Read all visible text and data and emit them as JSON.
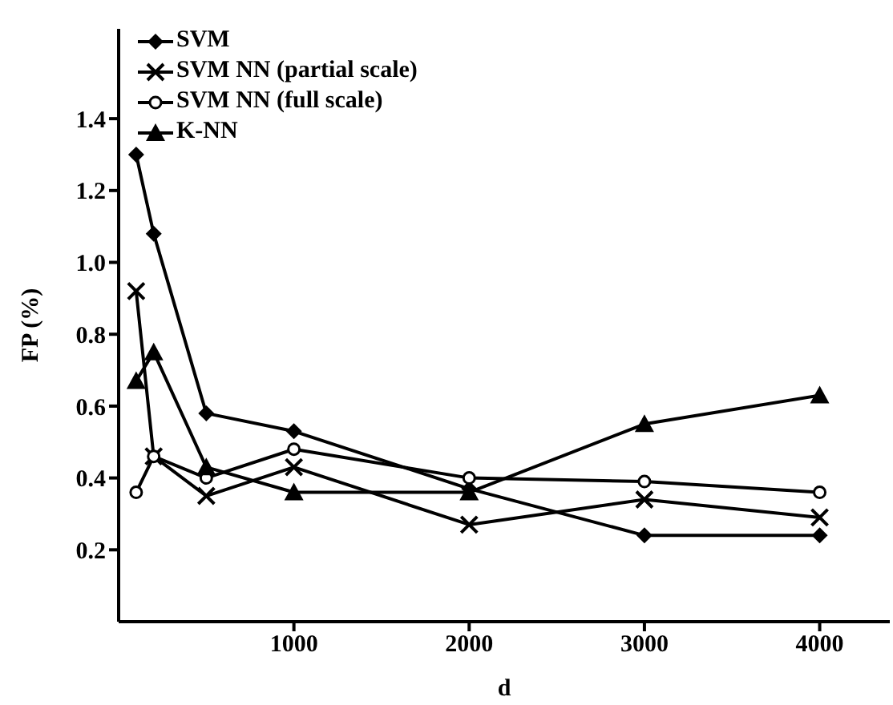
{
  "chart_data": {
    "type": "line",
    "xlabel": "d",
    "ylabel": "FP (%)",
    "x": [
      100,
      200,
      500,
      1000,
      2000,
      3000,
      4000
    ],
    "xlim": [
      0,
      4400
    ],
    "xticks": [
      1000,
      2000,
      3000,
      4000
    ],
    "ylim": [
      0,
      1.65
    ],
    "yticks": [
      0.2,
      0.4,
      0.6,
      0.8,
      {
        "value": 1,
        "label": "1.0"
      },
      1.2,
      1.4
    ],
    "grid": false,
    "legend": "top left",
    "series": [
      {
        "name": "SVM",
        "color": "#000000",
        "marker": "diamond",
        "values": [
          1.3,
          1.08,
          0.58,
          0.53,
          0.37,
          0.24,
          0.24
        ]
      },
      {
        "name": "SVM NN (partial scale)",
        "color": "#000000",
        "marker": "cross",
        "values": [
          0.92,
          0.46,
          0.35,
          0.43,
          0.27,
          0.34,
          0.29
        ]
      },
      {
        "name": "SVM NN (full scale)",
        "color": "#000000",
        "marker": "circle",
        "values": [
          0.36,
          0.46,
          0.4,
          0.48,
          0.4,
          0.39,
          0.36
        ]
      },
      {
        "name": "K-NN",
        "color": "#000000",
        "marker": "triangle",
        "values": [
          0.67,
          0.75,
          0.43,
          0.36,
          0.36,
          0.55,
          0.63
        ]
      }
    ]
  }
}
